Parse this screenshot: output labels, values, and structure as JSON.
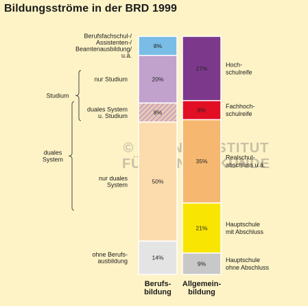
{
  "title": "Bildungsströme in der BRD 1999",
  "watermark": {
    "line1": "© LEIBNIZ-INSTITUT",
    "line2": "FÜR LÄNDERKUNDE"
  },
  "chart_data": {
    "type": "bar",
    "stacked": true,
    "unit": "%",
    "categories": [
      "Berufsbildung",
      "Allgemeinbildung"
    ],
    "category_labels": [
      [
        "Berufs-",
        "bildung"
      ],
      [
        "Allgemein-",
        "bildung"
      ]
    ],
    "series": [
      {
        "category": "Berufsbildung",
        "segments": [
          {
            "label": [
              "Berufsfachschul-/",
              "Assistenten-/",
              "Beamtenausbildung/",
              "u.ä."
            ],
            "value": 8,
            "color": "#79bde6"
          },
          {
            "label": [
              "nur Studium"
            ],
            "value": 20,
            "color": "#c1a2cc"
          },
          {
            "label": [
              "duales System",
              "u. Studium"
            ],
            "value": 8,
            "color": "#e7c7b4",
            "hatched": true
          },
          {
            "label": [
              "nur duales",
              "System"
            ],
            "value": 50,
            "color": "#fcdcad"
          },
          {
            "label": [
              "ohne Berufs-",
              "ausbildung"
            ],
            "value": 14,
            "color": "#e5e4e4"
          }
        ]
      },
      {
        "category": "Allgemeinbildung",
        "segments": [
          {
            "label": [
              "Hoch-",
              "schulreife"
            ],
            "value": 27,
            "color": "#7c398c"
          },
          {
            "label": [
              "Fachhoch-",
              "schulreife"
            ],
            "value": 8,
            "color": "#e20e24"
          },
          {
            "label": [
              "Realschul-",
              "abschluss u.ä."
            ],
            "value": 35,
            "color": "#f6b871"
          },
          {
            "label": [
              "Hauptschule",
              "mit Abschluss"
            ],
            "value": 21,
            "color": "#f8e602"
          },
          {
            "label": [
              "Hauptschule",
              "ohne Abschluss"
            ],
            "value": 9,
            "color": "#c8c8c8"
          }
        ]
      }
    ],
    "brackets": [
      {
        "label": "Studium",
        "covers": [
          "nur Studium",
          "duales System u. Studium"
        ]
      },
      {
        "label": [
          "duales",
          "System"
        ],
        "covers": [
          "duales System u. Studium",
          "nur duales System"
        ]
      }
    ]
  }
}
